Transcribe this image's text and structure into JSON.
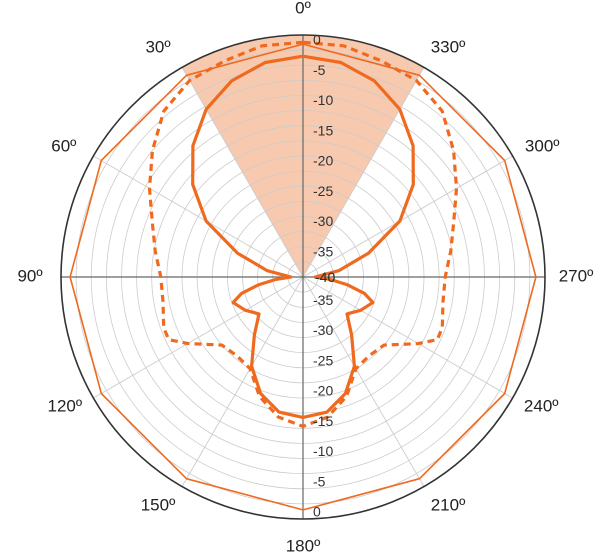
{
  "chart_data": {
    "type": "polar",
    "radial_axis": {
      "range_db": [
        -40,
        0
      ],
      "ring_step_db": 2.5,
      "tick_labels": [
        "0",
        "-5",
        "-10",
        "-15",
        "-20",
        "-25",
        "-30",
        "-35",
        "-40"
      ],
      "tick_values": [
        0,
        -5,
        -10,
        -15,
        -20,
        -25,
        -30,
        -35,
        -40
      ]
    },
    "angular_axis": {
      "direction": "counterclockwise",
      "zero_at": "top",
      "tick_labels": [
        "0º",
        "30º",
        "60º",
        "90º",
        "120º",
        "150º",
        "180º",
        "210º",
        "240º",
        "270º",
        "300º",
        "330º"
      ],
      "tick_values": [
        0,
        30,
        60,
        90,
        120,
        150,
        180,
        210,
        240,
        270,
        300,
        330
      ]
    },
    "grid": true,
    "colors": {
      "series": "#ef6a1e",
      "fill": "#f2a57a",
      "grid": "#cccccc",
      "axis": "#666666",
      "outer": "#333333"
    },
    "highlight_sector": {
      "from_deg": -30,
      "to_deg": 30
    },
    "series": [
      {
        "style": "solid-thin",
        "angles_deg": [
          0,
          30,
          60,
          90,
          120,
          150,
          180,
          210,
          240,
          270,
          300,
          330
        ],
        "values_db": [
          -1.5,
          -1.5,
          -1.5,
          -1.5,
          -1.5,
          -1.5,
          -1.5,
          -1.5,
          -1.5,
          -1.5,
          -1.5,
          -1.5
        ]
      },
      {
        "style": "dashed",
        "angles_deg": [
          0,
          10,
          20,
          30,
          40,
          50,
          60,
          70,
          80,
          90,
          100,
          110,
          115,
          120,
          130,
          140,
          150,
          160,
          170,
          180,
          190,
          200,
          210,
          220,
          230,
          240,
          245,
          250,
          260,
          270,
          280,
          290,
          300,
          310,
          320,
          330,
          340,
          350
        ],
        "values_db": [
          -1.2,
          -1.2,
          -2,
          -2.5,
          -4.2,
          -7.5,
          -10.7,
          -13.5,
          -15.2,
          -16.5,
          -16.5,
          -15.5,
          -15.5,
          -18,
          -22.5,
          -23,
          -22.5,
          -19,
          -16.5,
          -15.3,
          -16.5,
          -19,
          -22.5,
          -23,
          -22.5,
          -18,
          -15.5,
          -15.5,
          -16.5,
          -16.5,
          -15.2,
          -13.5,
          -10.7,
          -7.5,
          -4.2,
          -2.5,
          -2,
          -1.2
        ]
      },
      {
        "style": "solid-thick",
        "angles_deg": [
          0,
          10,
          20,
          30,
          40,
          50,
          60,
          70,
          80,
          85,
          90,
          95,
          100,
          105,
          110,
          120,
          130,
          140,
          150,
          160,
          170,
          180,
          190,
          200,
          210,
          220,
          230,
          240,
          250,
          255,
          260,
          265,
          270,
          275,
          280,
          290,
          300,
          310,
          320,
          330,
          340,
          350
        ],
        "values_db": [
          -3.5,
          -4,
          -5.5,
          -8,
          -11.7,
          -16.2,
          -21.5,
          -28.5,
          -34,
          -37,
          -38,
          -35.5,
          -32.5,
          -29.5,
          -27.7,
          -29,
          -30.5,
          -27.5,
          -23,
          -19.5,
          -17.3,
          -16.8,
          -17.3,
          -19.5,
          -23,
          -27.5,
          -30.5,
          -29,
          -27.7,
          -29.5,
          -32.5,
          -35.5,
          -38,
          -37,
          -34,
          -28.5,
          -21.5,
          -16.2,
          -11.7,
          -8,
          -5.5,
          -4
        ]
      }
    ]
  }
}
